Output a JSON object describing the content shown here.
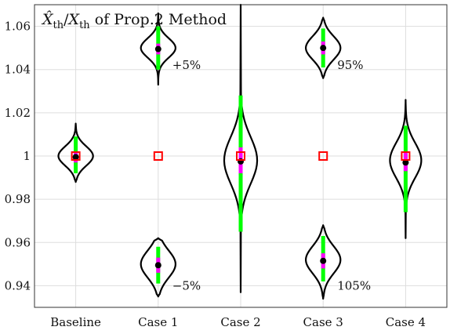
{
  "chart_data": {
    "type": "violin",
    "title_math_num": "X̂",
    "title_math_sub": "th",
    "title_math_slash": "/",
    "title_math_den": "X",
    "title_math_den_sub": "th",
    "title_text": " of Prop.2 Method",
    "xlabel": "",
    "ylabel": "",
    "ylim": [
      0.93,
      1.07
    ],
    "yticks": [
      0.94,
      0.96,
      0.98,
      1.0,
      1.02,
      1.04,
      1.06
    ],
    "ytick_labels": [
      "0.94",
      "0.96",
      "0.98",
      "1",
      "1.02",
      "1.04",
      "1.06"
    ],
    "categories": [
      "Baseline",
      "Case 1",
      "Case 2",
      "Case 3",
      "Case 4"
    ],
    "grid": true,
    "colors": {
      "violin": "#000000",
      "whisker": "#00ff00",
      "iqr": "#ff00ff",
      "median": "#000000",
      "reference_marker": "#ff0000"
    },
    "violins": [
      {
        "category": "Baseline",
        "min": 0.988,
        "q1": 0.997,
        "median": 0.9995,
        "q3": 1.002,
        "max": 1.015,
        "whisker_low": 0.992,
        "whisker_high": 1.009,
        "peak": 1.0,
        "halfwidth": 0.42,
        "group": 0
      },
      {
        "category": "Case 1",
        "min": 1.033,
        "q1": 1.047,
        "median": 1.0495,
        "q3": 1.052,
        "max": 1.066,
        "whisker_low": 1.04,
        "whisker_high": 1.06,
        "peak": 1.05,
        "halfwidth": 0.42,
        "group": 1
      },
      {
        "category": "Case 1",
        "min": 0.935,
        "q1": 0.946,
        "median": 0.9495,
        "q3": 0.953,
        "max": 0.962,
        "whisker_low": 0.941,
        "whisker_high": 0.958,
        "peak": 0.95,
        "halfwidth": 0.42,
        "group": 1
      },
      {
        "category": "Case 2",
        "min": 0.937,
        "q1": 0.992,
        "median": 0.9975,
        "q3": 1.004,
        "max": 1.07,
        "whisker_low": 0.965,
        "whisker_high": 1.028,
        "peak": 0.998,
        "halfwidth": 0.4,
        "group": 2
      },
      {
        "category": "Case 3",
        "min": 1.036,
        "q1": 1.047,
        "median": 1.05,
        "q3": 1.053,
        "max": 1.064,
        "whisker_low": 1.041,
        "whisker_high": 1.059,
        "peak": 1.05,
        "halfwidth": 0.42,
        "group": 3
      },
      {
        "category": "Case 3",
        "min": 0.934,
        "q1": 0.948,
        "median": 0.9515,
        "q3": 0.955,
        "max": 0.968,
        "whisker_low": 0.942,
        "whisker_high": 0.963,
        "peak": 0.952,
        "halfwidth": 0.42,
        "group": 3
      },
      {
        "category": "Case 4",
        "min": 0.962,
        "q1": 0.993,
        "median": 0.997,
        "q3": 1.002,
        "max": 1.026,
        "whisker_low": 0.974,
        "whisker_high": 1.014,
        "peak": 0.998,
        "halfwidth": 0.38,
        "group": 4
      }
    ],
    "reference_markers": [
      {
        "category": "Baseline",
        "value": 1.0
      },
      {
        "category": "Case 1",
        "value": 1.0
      },
      {
        "category": "Case 2",
        "value": 1.0
      },
      {
        "category": "Case 3",
        "value": 1.0
      },
      {
        "category": "Case 4",
        "value": 1.0
      }
    ],
    "annotations": [
      {
        "text": "+5%",
        "category": "Case 1",
        "y": 1.042
      },
      {
        "text": "−5%",
        "category": "Case 1",
        "y": 0.94
      },
      {
        "text": "95%",
        "category": "Case 3",
        "y": 1.042
      },
      {
        "text": "105%",
        "category": "Case 3",
        "y": 0.94
      }
    ]
  }
}
